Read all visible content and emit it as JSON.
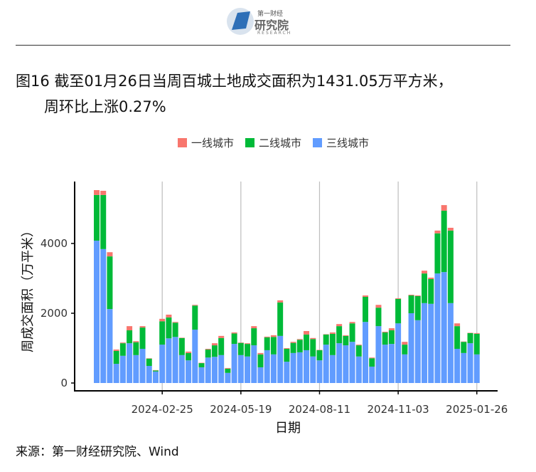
{
  "logo": {
    "line1": "第一财经",
    "line2": "研究院",
    "line3": "RESEARCH"
  },
  "title": {
    "line1": "图16 截至01月26日当周百城土地成交面积为1431.05万平方米，",
    "line2": "周环比上涨0.27%"
  },
  "source": "来源：第一财经研究院、Wind",
  "chart_data": {
    "type": "bar",
    "stacked": true,
    "xlabel": "日期",
    "ylabel": "周成交面积（万平米）",
    "ylim": [
      0,
      5600
    ],
    "yticks": [
      "0",
      "2000",
      "4000"
    ],
    "xticks": [
      "2024-02-25",
      "2024-05-19",
      "2024-08-11",
      "2024-11-03",
      "2025-01-26"
    ],
    "grid": "vertical at x ticks",
    "legend": "top",
    "categories": [
      "2023-12-17",
      "2023-12-24",
      "2023-12-31",
      "2024-01-07",
      "2024-01-14",
      "2024-01-21",
      "2024-01-28",
      "2024-02-04",
      "2024-02-11",
      "2024-02-18",
      "2024-02-25",
      "2024-03-03",
      "2024-03-10",
      "2024-03-17",
      "2024-03-24",
      "2024-03-31",
      "2024-04-07",
      "2024-04-14",
      "2024-04-21",
      "2024-04-28",
      "2024-05-05",
      "2024-05-12",
      "2024-05-19",
      "2024-05-26",
      "2024-06-02",
      "2024-06-09",
      "2024-06-16",
      "2024-06-23",
      "2024-06-30",
      "2024-07-07",
      "2024-07-14",
      "2024-07-21",
      "2024-07-28",
      "2024-08-04",
      "2024-08-11",
      "2024-08-18",
      "2024-08-25",
      "2024-09-01",
      "2024-09-08",
      "2024-09-15",
      "2024-09-22",
      "2024-09-29",
      "2024-10-06",
      "2024-10-13",
      "2024-10-20",
      "2024-10-27",
      "2024-11-03",
      "2024-11-10",
      "2024-11-17",
      "2024-11-24",
      "2024-12-01",
      "2024-12-08",
      "2024-12-15",
      "2024-12-22",
      "2024-12-29",
      "2025-01-05",
      "2025-01-12",
      "2025-01-19",
      "2025-01-26"
    ],
    "series": [
      {
        "name": "三线城市",
        "color": "#619CFF",
        "values": [
          4080,
          3840,
          2120,
          550,
          780,
          1140,
          800,
          980,
          490,
          330,
          1100,
          1280,
          1320,
          800,
          650,
          1530,
          450,
          730,
          750,
          800,
          290,
          1120,
          800,
          760,
          1080,
          450,
          940,
          820,
          1350,
          610,
          860,
          880,
          940,
          760,
          650,
          1100,
          800,
          1140,
          1080,
          1180,
          760,
          1750,
          470,
          1630,
          1100,
          1120,
          1710,
          820,
          2000,
          1800,
          2290,
          2270,
          3140,
          3180,
          2290,
          980,
          860,
          1140,
          820
        ]
      },
      {
        "name": "二线城市",
        "color": "#00BA38",
        "values": [
          1310,
          1550,
          1510,
          370,
          360,
          370,
          370,
          610,
          210,
          30,
          670,
          600,
          410,
          490,
          210,
          690,
          120,
          230,
          330,
          490,
          120,
          300,
          350,
          360,
          490,
          370,
          370,
          500,
          960,
          370,
          290,
          360,
          450,
          500,
          290,
          290,
          610,
          490,
          270,
          530,
          320,
          720,
          240,
          530,
          350,
          390,
          700,
          280,
          510,
          690,
          850,
          710,
          1150,
          1760,
          2080,
          650,
          320,
          290,
          590
        ]
      },
      {
        "name": "一线城市",
        "color": "#F8766D",
        "values": [
          140,
          120,
          120,
          40,
          20,
          120,
          30,
          40,
          10,
          10,
          70,
          80,
          20,
          10,
          40,
          20,
          10,
          20,
          60,
          60,
          20,
          30,
          10,
          20,
          60,
          40,
          20,
          50,
          60,
          20,
          30,
          20,
          100,
          30,
          10,
          10,
          40,
          60,
          20,
          40,
          20,
          40,
          20,
          80,
          20,
          60,
          20,
          80,
          20,
          20,
          80,
          40,
          80,
          160,
          80,
          80,
          10,
          10,
          21
        ]
      }
    ]
  }
}
